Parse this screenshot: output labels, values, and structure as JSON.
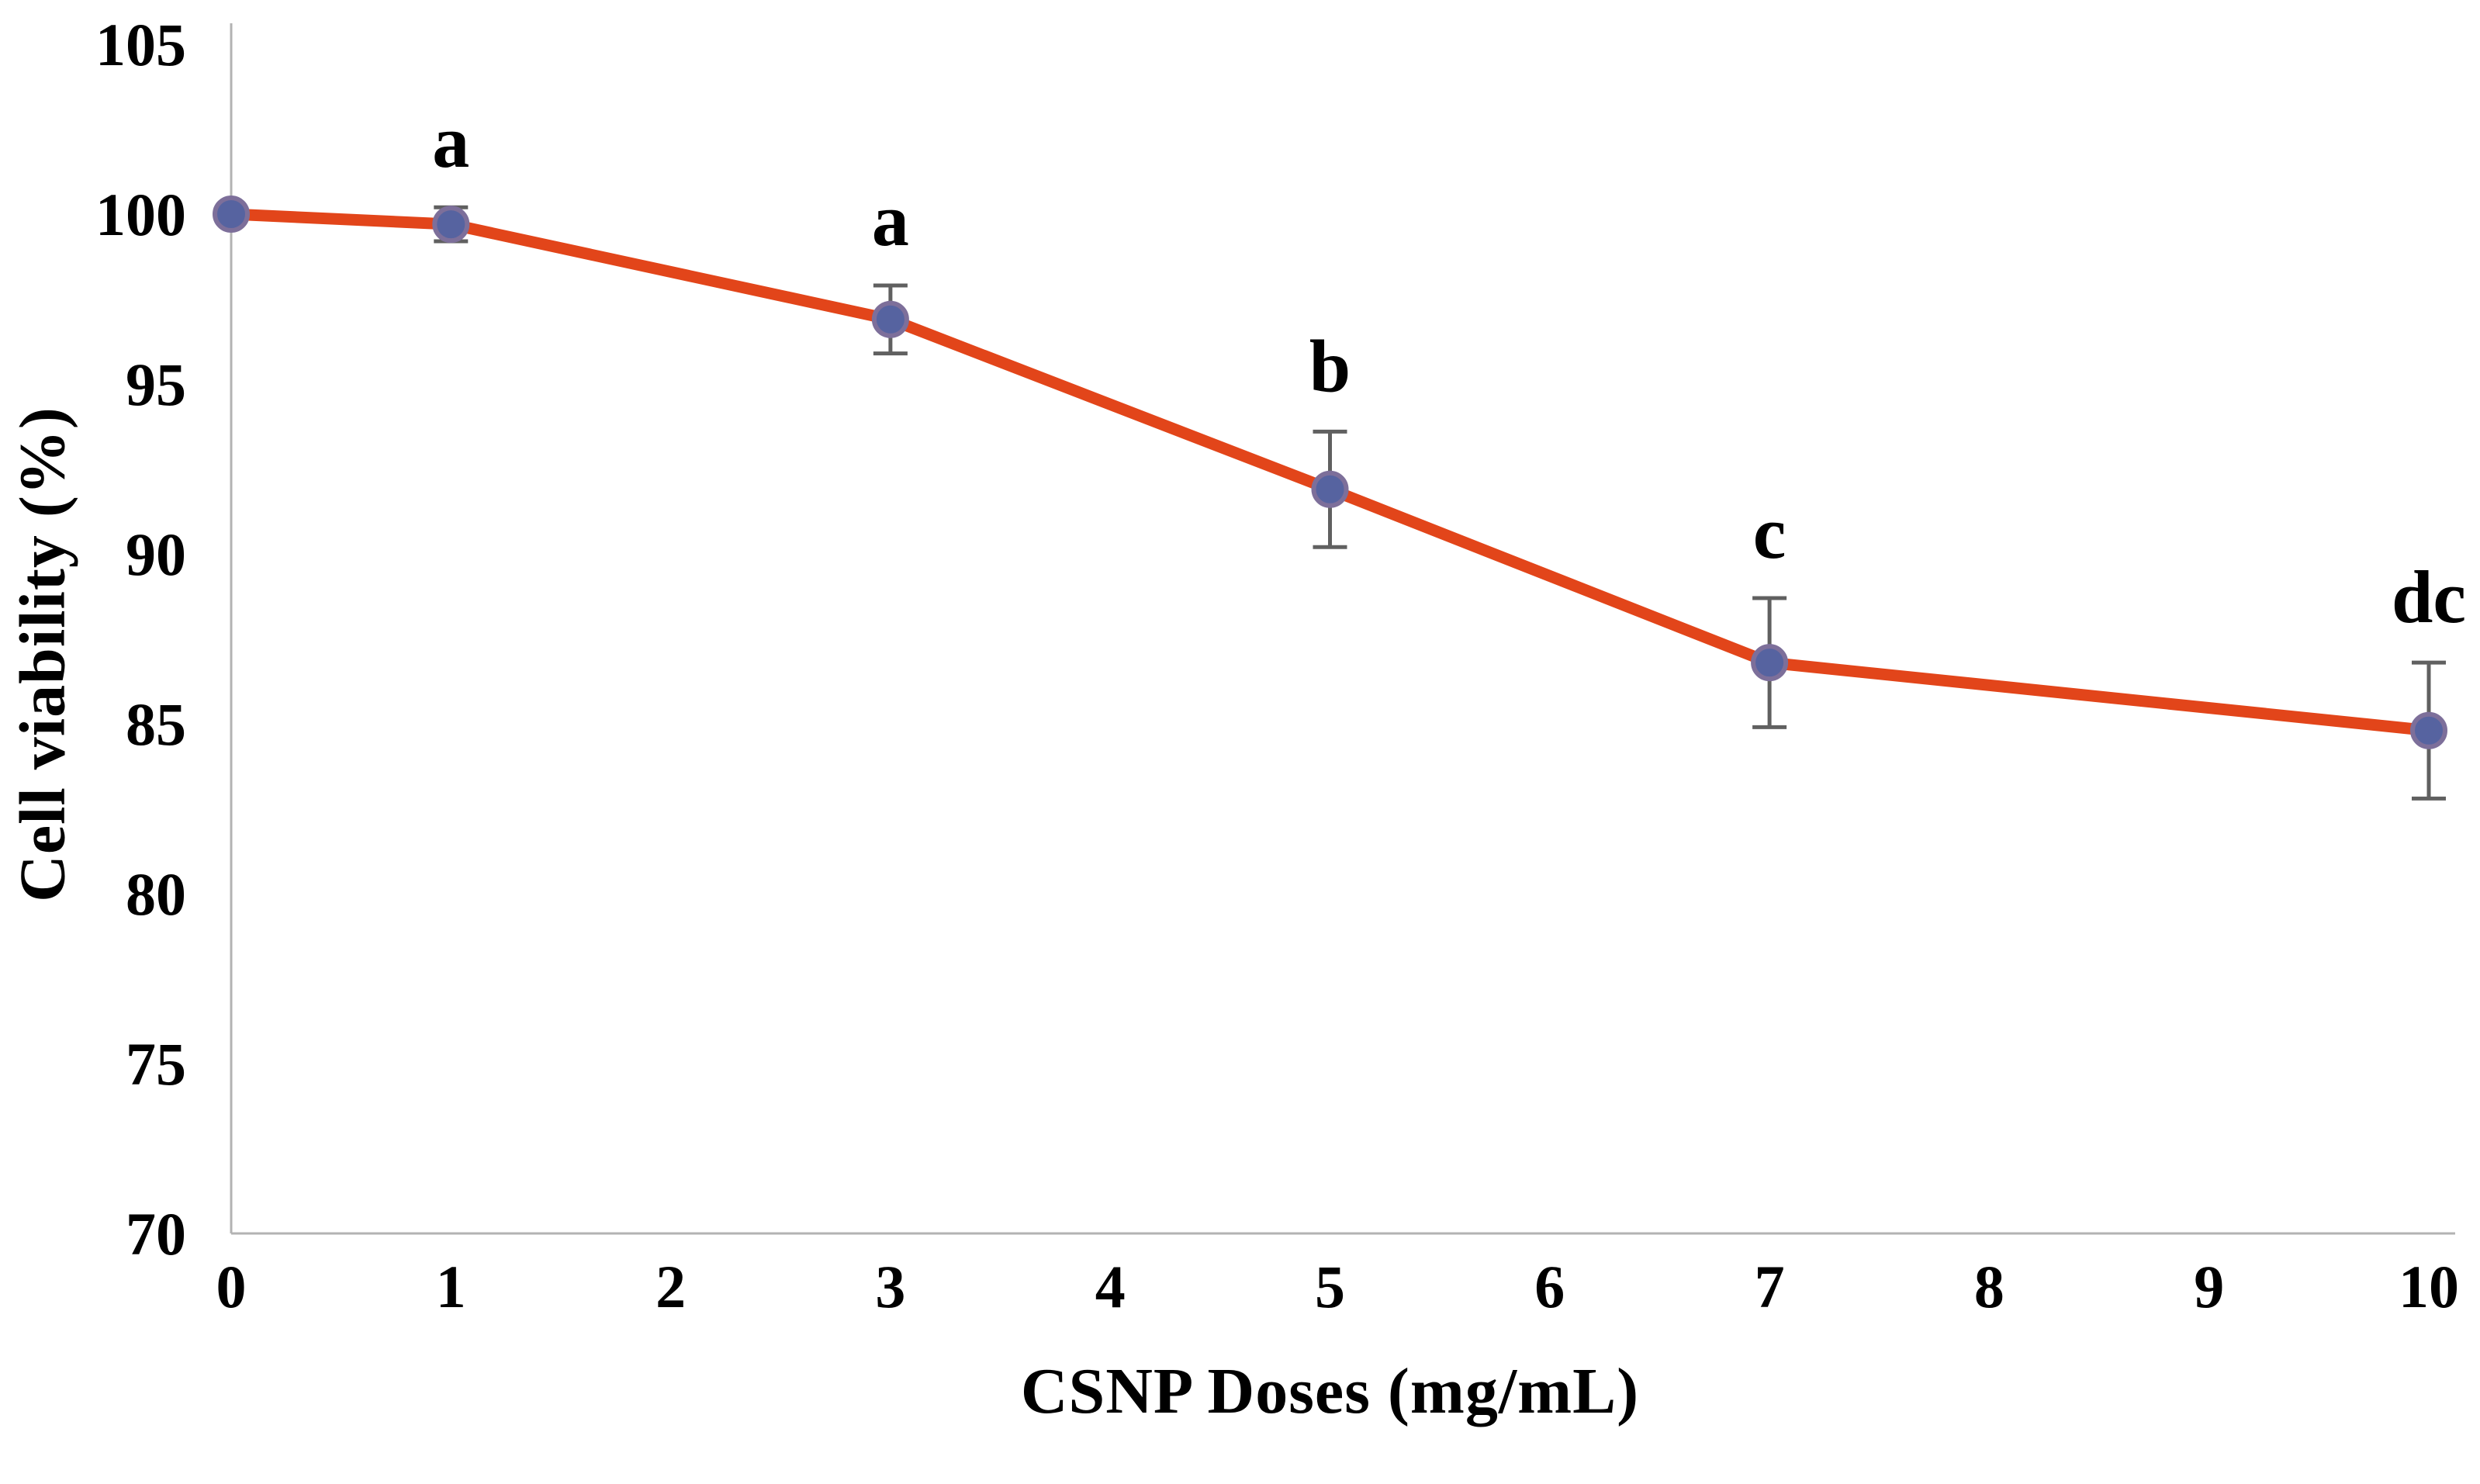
{
  "figure": {
    "background": "#ffffff"
  },
  "chart_data": {
    "type": "line",
    "title": "",
    "xlabel": "CSNP Doses (mg/mL)",
    "ylabel": "Cell viability (%)",
    "x": [
      0,
      1,
      3,
      5,
      7,
      10
    ],
    "series": [
      {
        "name": "Cell viability",
        "values": [
          100.0,
          99.7,
          96.9,
          91.9,
          86.8,
          84.8
        ],
        "error_bars": [
          0,
          0.5,
          1.0,
          1.7,
          1.9,
          2.0
        ],
        "point_labels": [
          "",
          "a",
          "a",
          "b",
          "c",
          "dc"
        ]
      }
    ],
    "x_ticks": [
      0,
      1,
      2,
      3,
      4,
      5,
      6,
      7,
      8,
      9,
      10
    ],
    "y_ticks": [
      70,
      75,
      80,
      85,
      90,
      95,
      100,
      105
    ],
    "xlim": [
      0,
      10
    ],
    "ylim": [
      70,
      105
    ],
    "grid": false,
    "legend": false,
    "colors": {
      "line": "#e2451a",
      "marker_fill": "#5663a0",
      "marker_stroke": "#7d6f9a",
      "error_bar": "#606060",
      "axis": "#b3b3b3",
      "text": "#000000"
    }
  }
}
